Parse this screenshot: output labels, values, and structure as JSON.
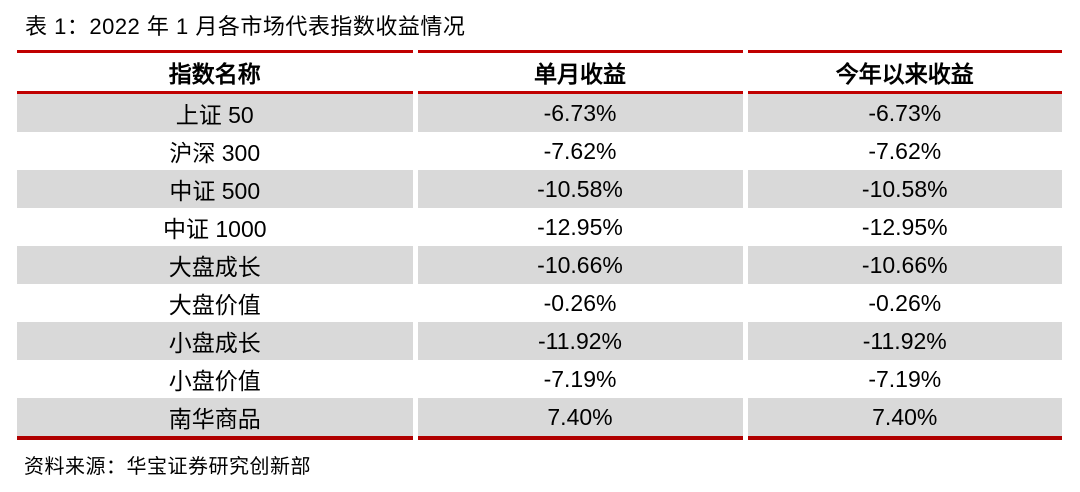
{
  "title": "表 1：2022 年 1 月各市场代表指数收益情况",
  "source": "资料来源：华宝证券研究创新部",
  "colors": {
    "rule_line_red": "#c00000",
    "bottom_rule_red": "#b00000",
    "alt_row_gray": "#d9d9d9",
    "text": "#000000"
  },
  "table": {
    "headers": [
      "指数名称",
      "单月收益",
      "今年以来收益"
    ],
    "rows": [
      [
        "上证 50",
        "-6.73%",
        "-6.73%"
      ],
      [
        "沪深 300",
        "-7.62%",
        "-7.62%"
      ],
      [
        "中证 500",
        "-10.58%",
        "-10.58%"
      ],
      [
        "中证 1000",
        "-12.95%",
        "-12.95%"
      ],
      [
        "大盘成长",
        "-10.66%",
        "-10.66%"
      ],
      [
        "大盘价值",
        "-0.26%",
        "-0.26%"
      ],
      [
        "小盘成长",
        "-11.92%",
        "-11.92%"
      ],
      [
        "小盘价值",
        "-7.19%",
        "-7.19%"
      ],
      [
        "南华商品",
        "7.40%",
        "7.40%"
      ]
    ]
  },
  "chart_data": {
    "type": "table",
    "title": "表 1：2022 年 1 月各市场代表指数收益情况",
    "columns": [
      "指数名称",
      "单月收益",
      "今年以来收益"
    ],
    "rows": [
      {
        "index": "上证 50",
        "monthly_return": "-6.73%",
        "ytd_return": "-6.73%"
      },
      {
        "index": "沪深 300",
        "monthly_return": "-7.62%",
        "ytd_return": "-7.62%"
      },
      {
        "index": "中证 500",
        "monthly_return": "-10.58%",
        "ytd_return": "-10.58%"
      },
      {
        "index": "中证 1000",
        "monthly_return": "-12.95%",
        "ytd_return": "-12.95%"
      },
      {
        "index": "大盘成长",
        "monthly_return": "-10.66%",
        "ytd_return": "-10.66%"
      },
      {
        "index": "大盘价值",
        "monthly_return": "-0.26%",
        "ytd_return": "-0.26%"
      },
      {
        "index": "小盘成长",
        "monthly_return": "-11.92%",
        "ytd_return": "-11.92%"
      },
      {
        "index": "小盘价值",
        "monthly_return": "-7.19%",
        "ytd_return": "-7.19%"
      },
      {
        "index": "南华商品",
        "monthly_return": "7.40%",
        "ytd_return": "7.40%"
      }
    ]
  }
}
